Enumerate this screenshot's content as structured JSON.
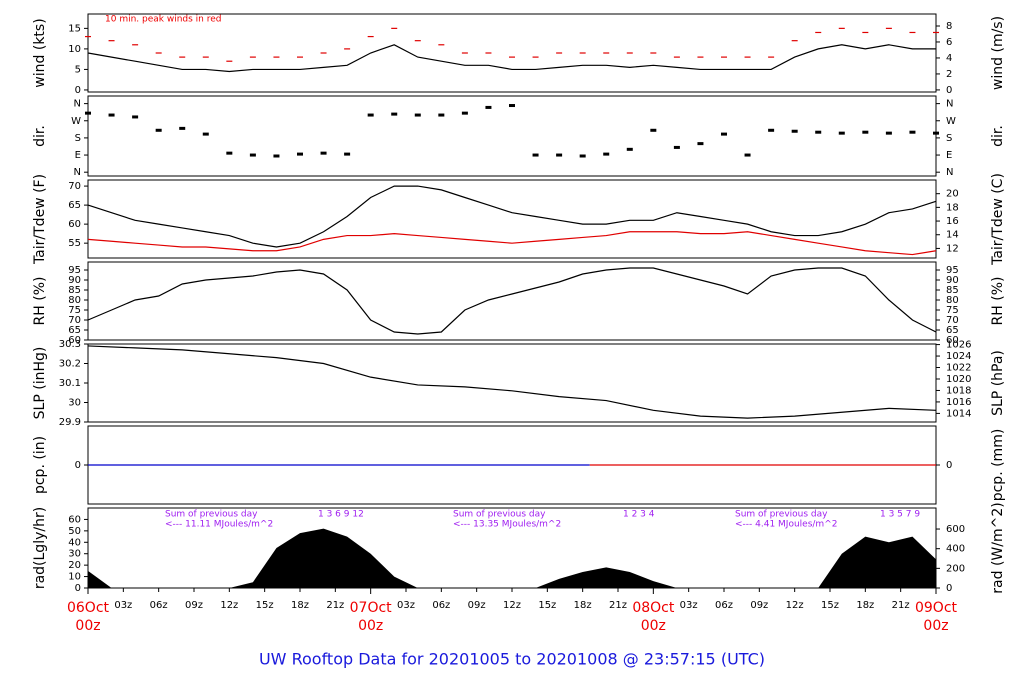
{
  "title": "UW Rooftop Data for 20201005  to  20201008 @ 23:57:15  (UTC)",
  "chart_data": [
    {
      "type": "line",
      "y_label": "wind (kts)",
      "y2_label": "wind (m/s)",
      "annotations": [
        "10 min. peak winds in red"
      ],
      "xlim": [
        0,
        72
      ],
      "ylim": [
        -0.5,
        18.5
      ],
      "yticks": [
        0,
        5,
        10,
        15
      ],
      "y2lim": [
        -0.26,
        9.5
      ],
      "y2ticks": [
        0,
        2,
        4,
        6,
        8
      ],
      "x": [
        0,
        2,
        4,
        6,
        8,
        10,
        12,
        14,
        16,
        18,
        20,
        22,
        24,
        26,
        28,
        30,
        32,
        34,
        36,
        38,
        40,
        42,
        44,
        46,
        48,
        50,
        52,
        54,
        56,
        58,
        60,
        62,
        64,
        66,
        68,
        70,
        72
      ],
      "series": [
        {
          "type": "line",
          "color": "#000000",
          "values": [
            9,
            8,
            7,
            6,
            5,
            5,
            4.5,
            5,
            5,
            5,
            5.5,
            6,
            9,
            11,
            8,
            7,
            6,
            6,
            5,
            5,
            5.5,
            6,
            6,
            5.5,
            6,
            5.5,
            5,
            5,
            5,
            5,
            8,
            10,
            11,
            10,
            11,
            10,
            10
          ]
        },
        {
          "type": "dash",
          "color": "#e00000",
          "values": [
            13,
            12,
            11,
            9,
            8,
            8,
            7,
            8,
            8,
            8,
            9,
            10,
            13,
            15,
            12,
            11,
            9,
            9,
            8,
            8,
            9,
            9,
            9,
            9,
            9,
            8,
            8,
            8,
            8,
            8,
            12,
            14,
            15,
            14,
            15,
            14,
            14
          ]
        }
      ]
    },
    {
      "type": "scatter",
      "y_label": "dir.",
      "y2_label": "dir.",
      "xlim": [
        0,
        72
      ],
      "ylim": [
        -20,
        400
      ],
      "yticks": [
        {
          "value": 360,
          "label": "N"
        },
        {
          "value": 270,
          "label": "W"
        },
        {
          "value": 180,
          "label": "S"
        },
        {
          "value": 90,
          "label": "E"
        },
        {
          "value": 0,
          "label": "N"
        }
      ],
      "y2lim": [
        -20,
        400
      ],
      "y2ticks": [
        {
          "value": 360,
          "label": "N"
        },
        {
          "value": 270,
          "label": "W"
        },
        {
          "value": 180,
          "label": "S"
        },
        {
          "value": 90,
          "label": "E"
        },
        {
          "value": 0,
          "label": "N"
        }
      ],
      "x": [
        0,
        2,
        4,
        6,
        8,
        10,
        12,
        14,
        16,
        18,
        20,
        22,
        24,
        26,
        28,
        30,
        32,
        34,
        36,
        38,
        40,
        42,
        44,
        46,
        48,
        50,
        52,
        54,
        56,
        58,
        60,
        62,
        64,
        66,
        68,
        70,
        72
      ],
      "series": [
        {
          "type": "scatter",
          "color": "#000000",
          "values": [
            310,
            300,
            290,
            220,
            230,
            200,
            100,
            90,
            85,
            95,
            100,
            95,
            300,
            305,
            300,
            300,
            310,
            340,
            350,
            90,
            90,
            85,
            95,
            120,
            220,
            130,
            150,
            200,
            90,
            220,
            215,
            210,
            205,
            210,
            205,
            210,
            205
          ]
        }
      ]
    },
    {
      "type": "line",
      "y_label": "Tair/Tdew (F)",
      "y2_label": "Tair/Tdew (C)",
      "xlim": [
        0,
        72
      ],
      "ylim": [
        51.1,
        71.6
      ],
      "yticks": [
        55,
        60,
        65,
        70
      ],
      "y2lim": [
        10.6,
        22
      ],
      "y2ticks": [
        12,
        14,
        16,
        18,
        20
      ],
      "x": [
        0,
        2,
        4,
        6,
        8,
        10,
        12,
        14,
        16,
        18,
        20,
        22,
        24,
        26,
        28,
        30,
        32,
        34,
        36,
        38,
        40,
        42,
        44,
        46,
        48,
        50,
        52,
        54,
        56,
        58,
        60,
        62,
        64,
        66,
        68,
        70,
        72
      ],
      "series": [
        {
          "type": "line",
          "color": "#000000",
          "values": [
            65,
            63,
            61,
            60,
            59,
            58,
            57,
            55,
            54,
            55,
            58,
            62,
            67,
            70,
            70,
            69,
            67,
            65,
            63,
            62,
            61,
            60,
            60,
            61,
            61,
            63,
            62,
            61,
            60,
            58,
            57,
            57,
            58,
            60,
            63,
            64,
            66
          ]
        },
        {
          "type": "line",
          "color": "#e00000",
          "values": [
            56,
            55.5,
            55,
            54.5,
            54,
            54,
            53.5,
            53,
            53,
            54,
            56,
            57,
            57,
            57.5,
            57,
            56.5,
            56,
            55.5,
            55,
            55.5,
            56,
            56.5,
            57,
            58,
            58,
            58,
            57.5,
            57.5,
            58,
            57,
            56,
            55,
            54,
            53,
            52.5,
            52,
            53
          ]
        }
      ]
    },
    {
      "type": "line",
      "y_label": "RH (%)",
      "y2_label": "RH (%)",
      "xlim": [
        0,
        72
      ],
      "ylim": [
        60,
        99
      ],
      "yticks": [
        60,
        65,
        70,
        75,
        80,
        85,
        90,
        95
      ],
      "y2lim": [
        60,
        99
      ],
      "y2ticks": [
        60,
        65,
        70,
        75,
        80,
        85,
        90,
        95
      ],
      "x": [
        0,
        2,
        4,
        6,
        8,
        10,
        12,
        14,
        16,
        18,
        20,
        22,
        24,
        26,
        28,
        30,
        32,
        34,
        36,
        38,
        40,
        42,
        44,
        46,
        48,
        50,
        52,
        54,
        56,
        58,
        60,
        62,
        64,
        66,
        68,
        70,
        72
      ],
      "series": [
        {
          "type": "line",
          "color": "#000000",
          "values": [
            70,
            75,
            80,
            82,
            88,
            90,
            91,
            92,
            94,
            95,
            93,
            85,
            70,
            64,
            63,
            64,
            75,
            80,
            83,
            86,
            89,
            93,
            95,
            96,
            96,
            93,
            90,
            87,
            83,
            92,
            95,
            96,
            96,
            92,
            80,
            70,
            64
          ]
        }
      ]
    },
    {
      "type": "line",
      "y_label": "SLP (inHg)",
      "y2_label": "SLP (hPa)",
      "xlim": [
        0,
        72
      ],
      "ylim": [
        29.9,
        30.3
      ],
      "yticks": [
        29.9,
        30.0,
        30.1,
        30.2,
        30.3
      ],
      "y2lim": [
        1012.5,
        1026.1
      ],
      "y2ticks": [
        1014,
        1016,
        1018,
        1020,
        1022,
        1024,
        1026
      ],
      "x": [
        0,
        4,
        8,
        12,
        16,
        20,
        24,
        28,
        32,
        36,
        40,
        44,
        48,
        52,
        56,
        60,
        64,
        68,
        72
      ],
      "series": [
        {
          "type": "line",
          "color": "#000000",
          "values": [
            30.29,
            30.28,
            30.27,
            30.25,
            30.23,
            30.2,
            30.13,
            30.09,
            30.08,
            30.06,
            30.03,
            30.01,
            29.96,
            29.93,
            29.92,
            29.93,
            29.95,
            29.97,
            29.96
          ]
        }
      ]
    },
    {
      "type": "line",
      "y_label": "pcp. (in)",
      "y2_label": "pcp. (mm)",
      "xlim": [
        0,
        72
      ],
      "ylim": [
        -1,
        1
      ],
      "yticks": [
        0
      ],
      "y2lim": [
        -25.4,
        25.4
      ],
      "y2ticks": [
        0
      ],
      "x": [
        0,
        42.6,
        72
      ],
      "series": [
        {
          "type": "line",
          "color": "#0000cc",
          "values": [
            0,
            0,
            null
          ]
        },
        {
          "type": "line",
          "color": "#e00000",
          "values": [
            null,
            0,
            0
          ]
        }
      ]
    },
    {
      "type": "area",
      "y_label": "rad(Lgly/hr)",
      "y2_label": "rad (W/m^2)",
      "annotations": [
        "Sum of previous day",
        "<--- 11.11 MJoules/m^2",
        "Sum of previous day",
        "<--- 13.35 MJoules/m^2",
        "Sum of previous day",
        "<--- 4.41 MJoules/m^2",
        "1 3 6 9 12",
        "1 2 3 4",
        "1 3 5 7 9"
      ],
      "xlim": [
        0,
        72
      ],
      "ylim": [
        0,
        70
      ],
      "yticks": [
        0,
        10,
        20,
        30,
        40,
        50,
        60
      ],
      "y2lim": [
        0,
        814
      ],
      "y2ticks": [
        0,
        200,
        400,
        600
      ],
      "xticks": [
        {
          "value": 3,
          "label": "03z"
        },
        {
          "value": 6,
          "label": "06z"
        },
        {
          "value": 9,
          "label": "09z"
        },
        {
          "value": 12,
          "label": "12z"
        },
        {
          "value": 15,
          "label": "15z"
        },
        {
          "value": 18,
          "label": "18z"
        },
        {
          "value": 21,
          "label": "21z"
        },
        {
          "value": 27,
          "label": "03z"
        },
        {
          "value": 30,
          "label": "06z"
        },
        {
          "value": 33,
          "label": "09z"
        },
        {
          "value": 36,
          "label": "12z"
        },
        {
          "value": 39,
          "label": "15z"
        },
        {
          "value": 42,
          "label": "18z"
        },
        {
          "value": 45,
          "label": "21z"
        },
        {
          "value": 51,
          "label": "03z"
        },
        {
          "value": 54,
          "label": "06z"
        },
        {
          "value": 57,
          "label": "09z"
        },
        {
          "value": 60,
          "label": "12z"
        },
        {
          "value": 63,
          "label": "15z"
        },
        {
          "value": 66,
          "label": "18z"
        },
        {
          "value": 69,
          "label": "21z"
        }
      ],
      "date_ticks": [
        {
          "value": 0,
          "label": "06Oct",
          "sublabel": "00z"
        },
        {
          "value": 24,
          "label": "07Oct",
          "sublabel": "00z"
        },
        {
          "value": 48,
          "label": "08Oct",
          "sublabel": "00z"
        },
        {
          "value": 72,
          "label": "09Oct",
          "sublabel": "00z"
        }
      ],
      "x": [
        0,
        2,
        4,
        6,
        8,
        10,
        12,
        14,
        16,
        18,
        20,
        22,
        24,
        26,
        28,
        30,
        32,
        34,
        36,
        38,
        40,
        42,
        44,
        46,
        48,
        50,
        52,
        54,
        56,
        58,
        60,
        62,
        64,
        66,
        68,
        70,
        72
      ],
      "series": [
        {
          "type": "area",
          "color": "#000000",
          "values": [
            15,
            0,
            0,
            0,
            0,
            0,
            0,
            5,
            35,
            48,
            52,
            45,
            30,
            10,
            0,
            0,
            0,
            0,
            0,
            0,
            8,
            14,
            18,
            14,
            6,
            0,
            0,
            0,
            0,
            0,
            0,
            0,
            30,
            45,
            40,
            45,
            25
          ]
        }
      ]
    }
  ]
}
